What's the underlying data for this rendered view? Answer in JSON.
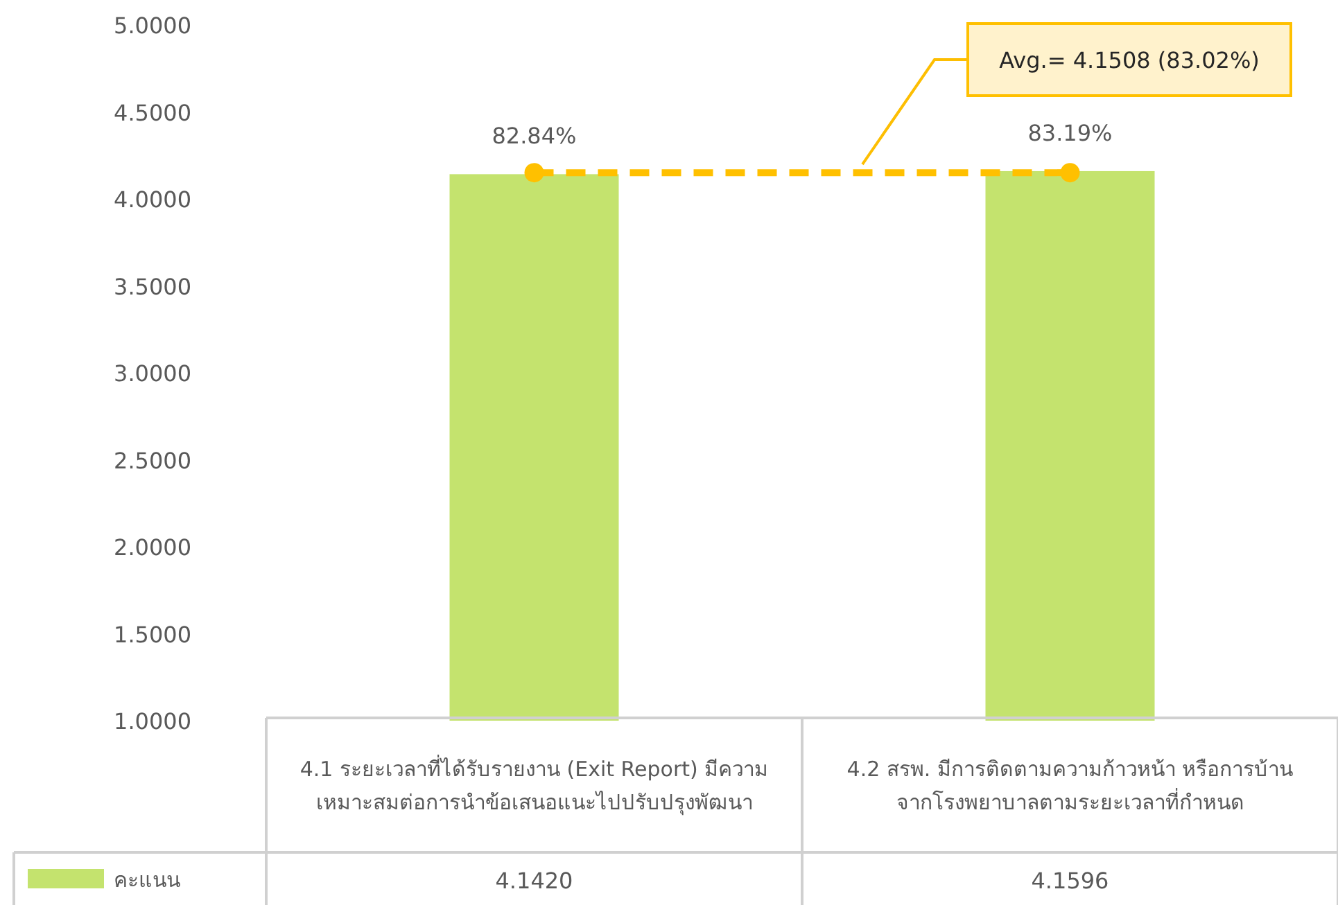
{
  "chart_data": {
    "type": "bar",
    "categories": [
      "4.1 ระยะเวลาที่ได้รับรายงาน (Exit Report) มีความเหมาะสมต่อการนำข้อเสนอแนะไปปรับปรุงพัฒนา",
      "4.2 สรพ. มีการติดตามความก้าวหน้า หรือการบ้านจากโรงพยาบาลตามระยะเวลาที่กำหนด"
    ],
    "series": [
      {
        "name": "คะแนน",
        "color": "#c4e36e",
        "values": [
          4.142,
          4.1596
        ],
        "value_labels": [
          "4.1420",
          "4.1596"
        ]
      },
      {
        "type": "line",
        "color": "#ffc000",
        "values": [
          4.1508,
          4.1508
        ],
        "line_style": "dashed",
        "marker": "circle"
      }
    ],
    "annotations": [
      "Avg.= 4.1508 (83.02%)",
      {
        "text": "82.84%",
        "x": "4.1 ระยะเวลาที่ได้รับรายงาน (Exit Report) มีความเหมาะสมต่อการนำข้อเสนอแนะไปปรับปรุงพัฒนา",
        "y": 4.142
      },
      {
        "text": "83.19%",
        "x": "4.2 สรพ. มีการติดตามความก้าวหน้า หรือการบ้านจากโรงพยาบาลตามระยะเวลาที่กำหนด",
        "y": 4.1596
      }
    ],
    "ylim": [
      1,
      5
    ],
    "yticks": [
      {
        "value": 1,
        "label": "1.0000"
      },
      {
        "value": 1.5,
        "label": "1.5000"
      },
      {
        "value": 2,
        "label": "2.0000"
      },
      {
        "value": 2.5,
        "label": "2.5000"
      },
      {
        "value": 3,
        "label": "3.0000"
      },
      {
        "value": 3.5,
        "label": "3.5000"
      },
      {
        "value": 4,
        "label": "4.0000"
      },
      {
        "value": 4.5,
        "label": "4.5000"
      },
      {
        "value": 5,
        "label": "5.0000"
      }
    ],
    "grid": false,
    "legend": "bottom"
  }
}
